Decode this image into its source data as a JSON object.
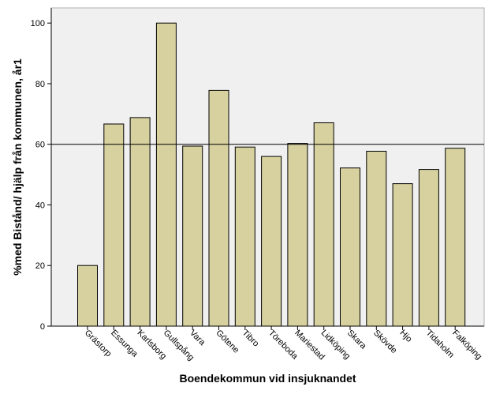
{
  "chart_data": {
    "type": "bar",
    "xlabel": "Boendekommun vid insjuknandet",
    "ylabel": "%med Bistånd/ hjälp från kommunen, år1",
    "ylim": [
      0,
      105
    ],
    "yticks": [
      0,
      20,
      40,
      60,
      80,
      100
    ],
    "reference_line": 60,
    "categories": [
      "Grästorp",
      "Essunga",
      "Karlsborg",
      "Gullspång",
      "Vara",
      "Götene",
      "Tibro",
      "Töreboda",
      "Mariestad",
      "Lidköping",
      "Skara",
      "Skövde",
      "Hjo",
      "Tidaholm",
      "Falköping"
    ],
    "values": [
      20,
      66.7,
      68.8,
      100,
      59.4,
      77.8,
      59.1,
      56,
      60.3,
      67.1,
      52.2,
      57.7,
      47,
      51.7,
      58.7
    ],
    "colors": {
      "bar": "#d6d19f",
      "plot_bg": "#f0f0f0",
      "stroke": "#000000"
    }
  }
}
